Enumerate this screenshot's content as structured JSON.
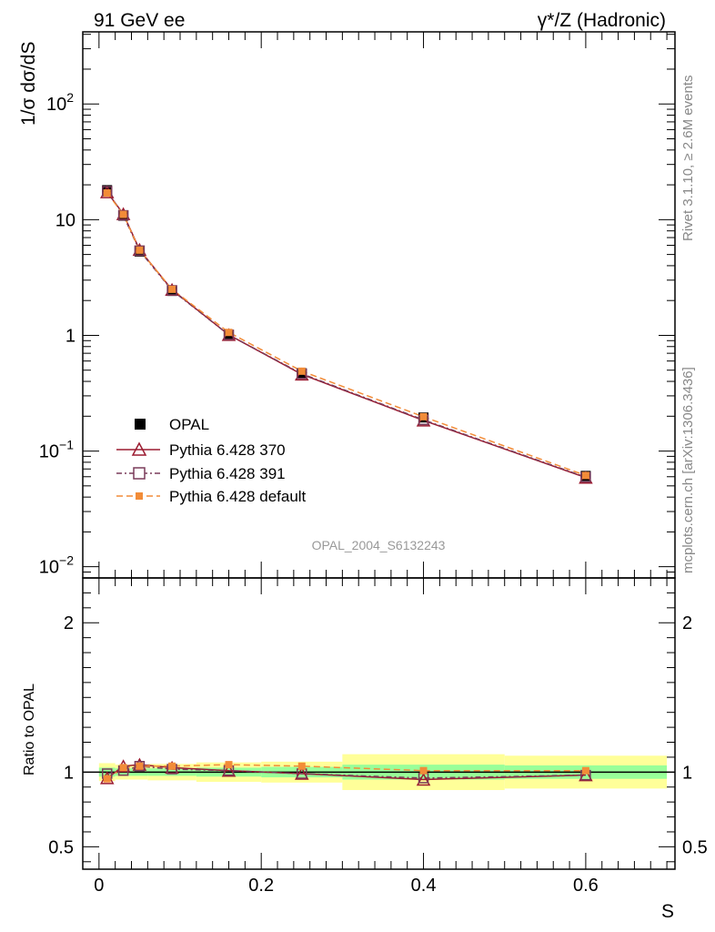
{
  "header": {
    "left_title": "91 GeV ee",
    "right_title": "γ*/Z (Hadronic)"
  },
  "side_labels": {
    "rivet": "Rivet 3.1.10, ≥ 2.6M events",
    "mcplots": "mcplots.cern.ch [arXiv:1306.3436]"
  },
  "chart_data": [
    {
      "type": "line",
      "title": "91 GeV ee",
      "analysis_label": "OPAL_2004_S6132243",
      "ylabel": "1/σ dσ/dS",
      "yscale": "log",
      "ylim": [
        0.008,
        420
      ],
      "yticks": [
        {
          "value": 100,
          "base": "10",
          "exp": "2"
        },
        {
          "value": 10,
          "label": "10"
        },
        {
          "value": 1,
          "label": "1"
        },
        {
          "value": 0.1,
          "base": "10",
          "exp": "−1"
        },
        {
          "value": 0.01,
          "base": "10",
          "exp": "−2"
        }
      ],
      "xlim": [
        -0.02,
        0.71
      ],
      "x": [
        0.01,
        0.03,
        0.05,
        0.09,
        0.16,
        0.25,
        0.4,
        0.6
      ],
      "series": [
        {
          "name": "OPAL",
          "marker": "square-filled",
          "color": "#000000",
          "values": [
            18.0,
            10.8,
            5.3,
            2.42,
            1.01,
            0.47,
            0.195,
            0.061
          ]
        },
        {
          "name": "Pythia 6.428 370",
          "marker": "triangle-open",
          "color": "#9b1b30",
          "values": [
            17.3,
            11.2,
            5.5,
            2.48,
            1.01,
            0.46,
            0.184,
            0.059
          ]
        },
        {
          "name": "Pythia 6.428 391",
          "marker": "square-open",
          "color": "#7a3b5a",
          "values": [
            17.6,
            10.9,
            5.4,
            2.45,
            1.01,
            0.465,
            0.186,
            0.0595
          ]
        },
        {
          "name": "Pythia 6.428 default",
          "marker": "square-small-filled",
          "color": "#f28c38",
          "values": [
            17.0,
            11.1,
            5.45,
            2.5,
            1.06,
            0.49,
            0.198,
            0.0615
          ]
        }
      ],
      "legend_position": "lower-left"
    },
    {
      "type": "line",
      "ylabel": "Ratio to OPAL",
      "xlabel": "S",
      "ylim": [
        0.35,
        2.3
      ],
      "yticks": [
        0.5,
        1,
        2
      ],
      "ytick_labels": [
        "0.5",
        "1",
        "2"
      ],
      "xlim": [
        -0.02,
        0.71
      ],
      "xticks": [
        0,
        0.2,
        0.4,
        0.6
      ],
      "xtick_labels": [
        "0",
        "0.2",
        "0.4",
        "0.6"
      ],
      "bands": [
        {
          "x0": 0.0,
          "x1": 0.02,
          "stat": 0.03,
          "total": 0.06
        },
        {
          "x0": 0.02,
          "x1": 0.04,
          "stat": 0.025,
          "total": 0.05
        },
        {
          "x0": 0.04,
          "x1": 0.06,
          "stat": 0.025,
          "total": 0.05
        },
        {
          "x0": 0.06,
          "x1": 0.12,
          "stat": 0.025,
          "total": 0.055
        },
        {
          "x0": 0.12,
          "x1": 0.2,
          "stat": 0.03,
          "total": 0.065
        },
        {
          "x0": 0.2,
          "x1": 0.3,
          "stat": 0.035,
          "total": 0.07
        },
        {
          "x0": 0.3,
          "x1": 0.5,
          "stat": 0.05,
          "total": 0.12
        },
        {
          "x0": 0.5,
          "x1": 0.7,
          "stat": 0.045,
          "total": 0.11
        }
      ],
      "series": [
        {
          "name": "Pythia 6.428 370",
          "values": [
            0.96,
            1.04,
            1.05,
            1.03,
            1.01,
            0.99,
            0.95,
            0.98
          ]
        },
        {
          "name": "Pythia 6.428 391",
          "values": [
            0.99,
            1.01,
            1.04,
            1.02,
            1.01,
            0.99,
            0.96,
            0.98
          ]
        },
        {
          "name": "Pythia 6.428 default",
          "values": [
            0.955,
            1.03,
            1.04,
            1.04,
            1.05,
            1.04,
            1.01,
            1.01
          ]
        }
      ]
    }
  ]
}
